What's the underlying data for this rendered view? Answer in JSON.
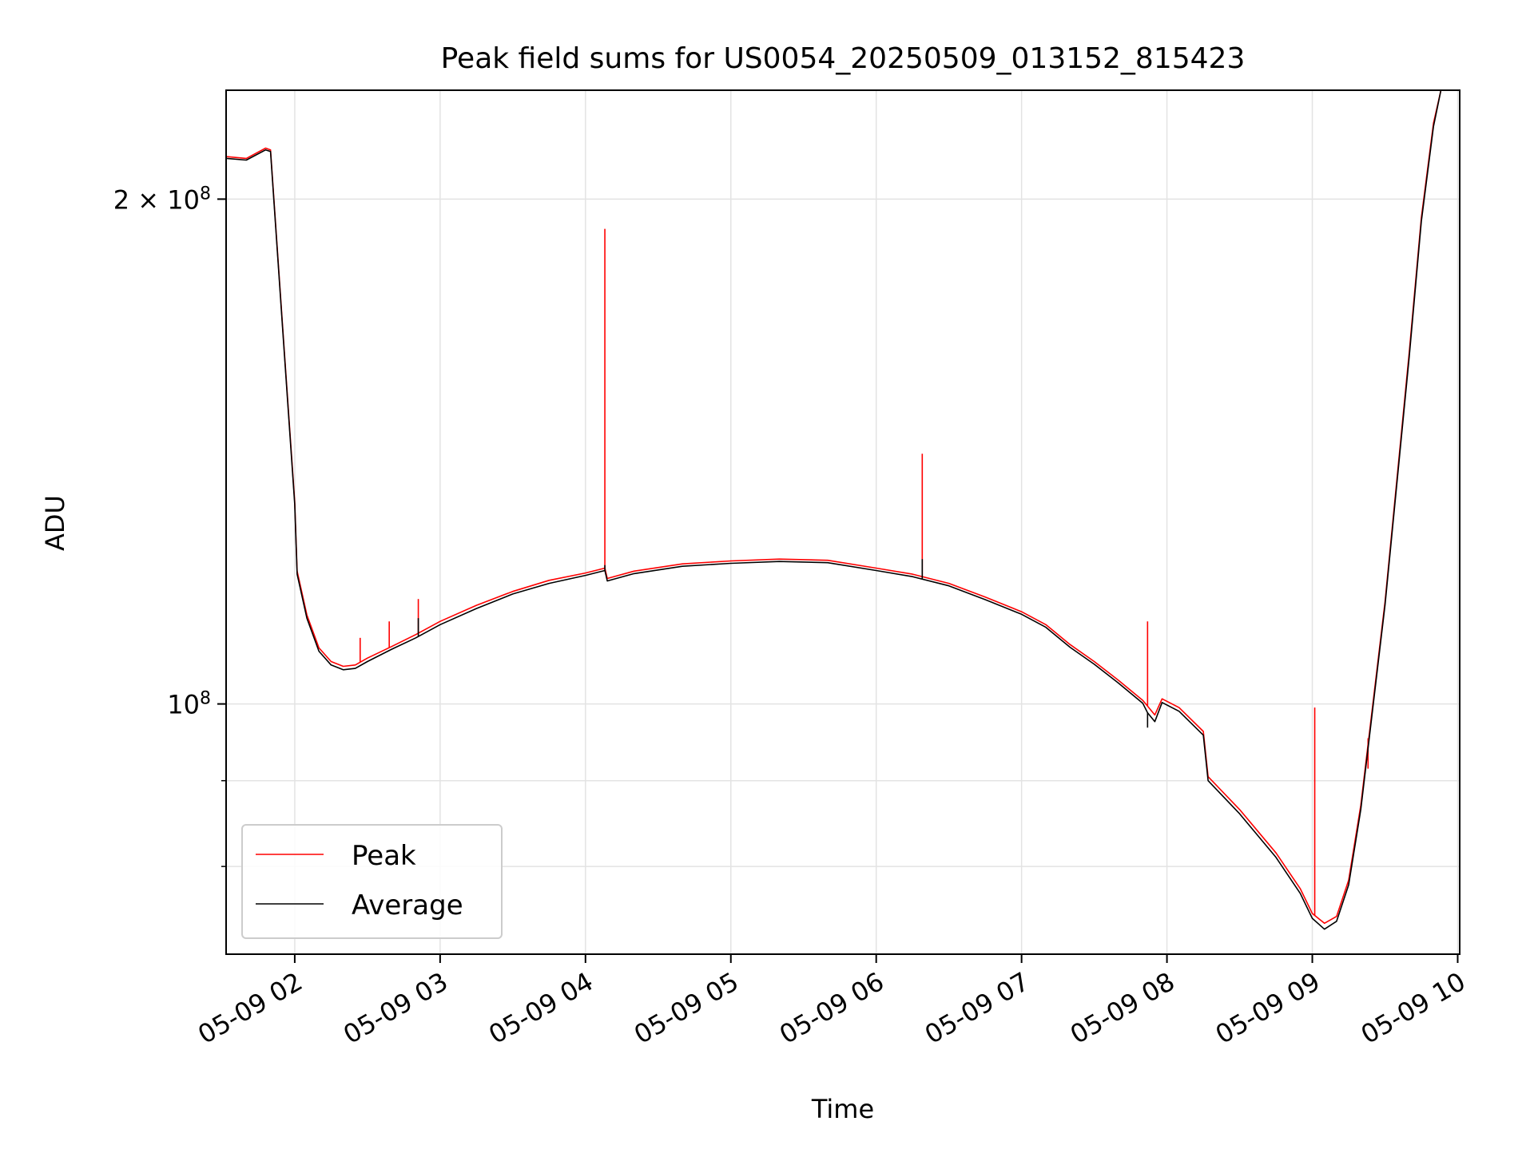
{
  "chart_data": {
    "type": "line",
    "title": "Peak field sums for US0054_20250509_013152_815423",
    "xlabel": "Time",
    "ylabel": "ADU",
    "yscale": "log",
    "grid": true,
    "legend_position": "lower-left",
    "xlim": [
      "2025-05-09T01:32:00",
      "2025-05-09T10:00:30"
    ],
    "ylim": [
      71000000,
      232000000
    ],
    "x_ticks": [
      {
        "value": "2025-05-09T02:00:00",
        "label": "05-09 02"
      },
      {
        "value": "2025-05-09T03:00:00",
        "label": "05-09 03"
      },
      {
        "value": "2025-05-09T04:00:00",
        "label": "05-09 04"
      },
      {
        "value": "2025-05-09T05:00:00",
        "label": "05-09 05"
      },
      {
        "value": "2025-05-09T06:00:00",
        "label": "05-09 06"
      },
      {
        "value": "2025-05-09T07:00:00",
        "label": "05-09 07"
      },
      {
        "value": "2025-05-09T08:00:00",
        "label": "05-09 08"
      },
      {
        "value": "2025-05-09T09:00:00",
        "label": "05-09 09"
      },
      {
        "value": "2025-05-09T10:00:00",
        "label": "05-09 10"
      }
    ],
    "y_major_ticks": [
      {
        "value": 100000000,
        "base": "10",
        "exp": "8"
      },
      {
        "value": 200000000,
        "coef": "2 × ",
        "base": "10",
        "exp": "8"
      }
    ],
    "y_minor_ticks": [
      80000000,
      90000000
    ],
    "series": [
      {
        "name": "Peak",
        "color": "#ff0000",
        "points": [
          [
            "2025-05-09T01:32:00",
            212000000
          ],
          [
            "2025-05-09T01:40:00",
            211500000
          ],
          [
            "2025-05-09T01:48:00",
            214500000
          ],
          [
            "2025-05-09T01:50:00",
            214000000
          ],
          [
            "2025-05-09T01:55:00",
            168000000
          ],
          [
            "2025-05-09T02:00:00",
            132000000
          ],
          [
            "2025-05-09T02:01:00",
            120000000
          ],
          [
            "2025-05-09T02:05:00",
            113000000
          ],
          [
            "2025-05-09T02:10:00",
            108000000
          ],
          [
            "2025-05-09T02:15:00",
            106000000
          ],
          [
            "2025-05-09T02:20:00",
            105300000
          ],
          [
            "2025-05-09T02:25:00",
            105500000
          ],
          [
            "2025-05-09T02:30:00",
            106500000
          ],
          [
            "2025-05-09T02:40:00",
            108200000
          ],
          [
            "2025-05-09T02:50:00",
            110000000
          ],
          [
            "2025-05-09T03:00:00",
            112000000
          ],
          [
            "2025-05-09T03:15:00",
            114500000
          ],
          [
            "2025-05-09T03:30:00",
            116700000
          ],
          [
            "2025-05-09T03:45:00",
            118500000
          ],
          [
            "2025-05-09T04:00:00",
            119700000
          ],
          [
            "2025-05-09T04:08:00",
            120500000
          ],
          [
            "2025-05-09T04:09:00",
            118800000
          ],
          [
            "2025-05-09T04:20:00",
            120000000
          ],
          [
            "2025-05-09T04:40:00",
            121200000
          ],
          [
            "2025-05-09T05:00:00",
            121700000
          ],
          [
            "2025-05-09T05:20:00",
            122000000
          ],
          [
            "2025-05-09T05:40:00",
            121800000
          ],
          [
            "2025-05-09T06:00:00",
            120500000
          ],
          [
            "2025-05-09T06:15:00",
            119500000
          ],
          [
            "2025-05-09T06:30:00",
            118000000
          ],
          [
            "2025-05-09T06:45:00",
            115800000
          ],
          [
            "2025-05-09T07:00:00",
            113500000
          ],
          [
            "2025-05-09T07:10:00",
            111500000
          ],
          [
            "2025-05-09T07:20:00",
            108500000
          ],
          [
            "2025-05-09T07:30:00",
            106000000
          ],
          [
            "2025-05-09T07:40:00",
            103300000
          ],
          [
            "2025-05-09T07:50:00",
            100500000
          ],
          [
            "2025-05-09T07:52:00",
            99700000
          ],
          [
            "2025-05-09T07:55:00",
            98500000
          ],
          [
            "2025-05-09T07:58:00",
            100700000
          ],
          [
            "2025-05-09T08:05:00",
            99500000
          ],
          [
            "2025-05-09T08:15:00",
            96300000
          ],
          [
            "2025-05-09T08:17:00",
            90500000
          ],
          [
            "2025-05-09T08:30:00",
            86500000
          ],
          [
            "2025-05-09T08:45:00",
            81500000
          ],
          [
            "2025-05-09T08:55:00",
            77600000
          ],
          [
            "2025-05-09T09:00:00",
            75000000
          ],
          [
            "2025-05-09T09:05:00",
            74000000
          ],
          [
            "2025-05-09T09:10:00",
            74700000
          ],
          [
            "2025-05-09T09:15:00",
            78500000
          ],
          [
            "2025-05-09T09:20:00",
            87000000
          ],
          [
            "2025-05-09T09:30:00",
            115000000
          ],
          [
            "2025-05-09T09:40:00",
            162000000
          ],
          [
            "2025-05-09T09:45:00",
            195000000
          ],
          [
            "2025-05-09T09:50:00",
            222000000
          ],
          [
            "2025-05-09T09:53:00",
            232000000
          ]
        ],
        "spikes": [
          [
            "2025-05-09T02:27:00",
            109500000
          ],
          [
            "2025-05-09T02:39:00",
            112000000
          ],
          [
            "2025-05-09T02:51:00",
            115500000
          ],
          [
            "2025-05-09T04:08:00",
            192000000
          ],
          [
            "2025-05-09T06:19:00",
            141000000
          ],
          [
            "2025-05-09T07:52:00",
            112000000
          ],
          [
            "2025-05-09T09:01:00",
            99500000
          ],
          [
            "2025-05-09T09:23:00",
            91500000
          ]
        ]
      },
      {
        "name": "Average",
        "color": "#000000",
        "points": [
          [
            "2025-05-09T01:32:00",
            211500000
          ],
          [
            "2025-05-09T01:40:00",
            211000000
          ],
          [
            "2025-05-09T01:48:00",
            214000000
          ],
          [
            "2025-05-09T01:50:00",
            213500000
          ],
          [
            "2025-05-09T01:55:00",
            167500000
          ],
          [
            "2025-05-09T02:00:00",
            131500000
          ],
          [
            "2025-05-09T02:01:00",
            119500000
          ],
          [
            "2025-05-09T02:05:00",
            112500000
          ],
          [
            "2025-05-09T02:10:00",
            107500000
          ],
          [
            "2025-05-09T02:15:00",
            105500000
          ],
          [
            "2025-05-09T02:20:00",
            104800000
          ],
          [
            "2025-05-09T02:25:00",
            105000000
          ],
          [
            "2025-05-09T02:30:00",
            106000000
          ],
          [
            "2025-05-09T02:40:00",
            107800000
          ],
          [
            "2025-05-09T02:50:00",
            109500000
          ],
          [
            "2025-05-09T03:00:00",
            111500000
          ],
          [
            "2025-05-09T03:15:00",
            114000000
          ],
          [
            "2025-05-09T03:30:00",
            116300000
          ],
          [
            "2025-05-09T03:45:00",
            118000000
          ],
          [
            "2025-05-09T04:00:00",
            119300000
          ],
          [
            "2025-05-09T04:08:00",
            120100000
          ],
          [
            "2025-05-09T04:09:00",
            118400000
          ],
          [
            "2025-05-09T04:20:00",
            119600000
          ],
          [
            "2025-05-09T04:40:00",
            120800000
          ],
          [
            "2025-05-09T05:00:00",
            121300000
          ],
          [
            "2025-05-09T05:20:00",
            121600000
          ],
          [
            "2025-05-09T05:40:00",
            121400000
          ],
          [
            "2025-05-09T06:00:00",
            120100000
          ],
          [
            "2025-05-09T06:15:00",
            119100000
          ],
          [
            "2025-05-09T06:30:00",
            117600000
          ],
          [
            "2025-05-09T06:45:00",
            115400000
          ],
          [
            "2025-05-09T07:00:00",
            113100000
          ],
          [
            "2025-05-09T07:10:00",
            111100000
          ],
          [
            "2025-05-09T07:20:00",
            108100000
          ],
          [
            "2025-05-09T07:30:00",
            105600000
          ],
          [
            "2025-05-09T07:40:00",
            102900000
          ],
          [
            "2025-05-09T07:50:00",
            100100000
          ],
          [
            "2025-05-09T07:52:00",
            98800000
          ],
          [
            "2025-05-09T07:55:00",
            97600000
          ],
          [
            "2025-05-09T07:58:00",
            100200000
          ],
          [
            "2025-05-09T08:05:00",
            99000000
          ],
          [
            "2025-05-09T08:15:00",
            95800000
          ],
          [
            "2025-05-09T08:17:00",
            90000000
          ],
          [
            "2025-05-09T08:30:00",
            86000000
          ],
          [
            "2025-05-09T08:45:00",
            81000000
          ],
          [
            "2025-05-09T08:55:00",
            77100000
          ],
          [
            "2025-05-09T09:00:00",
            74500000
          ],
          [
            "2025-05-09T09:05:00",
            73400000
          ],
          [
            "2025-05-09T09:10:00",
            74200000
          ],
          [
            "2025-05-09T09:15:00",
            78000000
          ],
          [
            "2025-05-09T09:20:00",
            86500000
          ],
          [
            "2025-05-09T09:30:00",
            114500000
          ],
          [
            "2025-05-09T09:40:00",
            161000000
          ],
          [
            "2025-05-09T09:45:00",
            194000000
          ],
          [
            "2025-05-09T09:50:00",
            221000000
          ],
          [
            "2025-05-09T09:53:00",
            232000000
          ]
        ],
        "spikes": [
          [
            "2025-05-09T02:51:00",
            112500000
          ],
          [
            "2025-05-09T04:08:00",
            121000000
          ],
          [
            "2025-05-09T06:19:00",
            122000000
          ],
          [
            "2025-05-09T07:52:00",
            96800000
          ]
        ]
      }
    ]
  }
}
